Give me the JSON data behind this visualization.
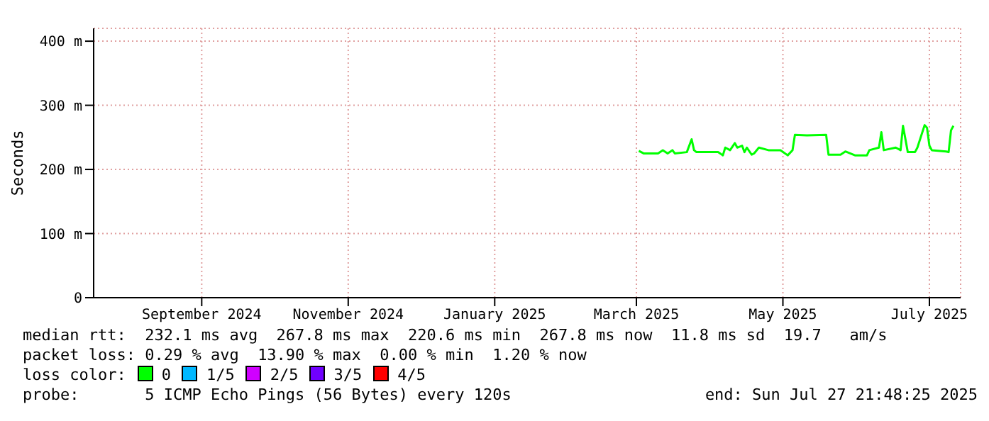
{
  "chart_data": {
    "type": "line",
    "ylabel": "Seconds",
    "legend_title": "loss color:",
    "legend": "bottom",
    "grid": true,
    "marker": "none",
    "line_style": "solid",
    "x": [
      "2025-03-17",
      "2025-03-19",
      "2025-03-25",
      "2025-03-27",
      "2025-03-29",
      "2025-03-31",
      "2025-04-01",
      "2025-04-06",
      "2025-04-08",
      "2025-04-09",
      "2025-04-10",
      "2025-04-19",
      "2025-04-21",
      "2025-04-22",
      "2025-04-24",
      "2025-04-26",
      "2025-04-27",
      "2025-04-29",
      "2025-04-30",
      "2025-05-01",
      "2025-05-03",
      "2025-05-04",
      "2025-05-06",
      "2025-05-10",
      "2025-05-15",
      "2025-05-18",
      "2025-05-20",
      "2025-05-21",
      "2025-05-26",
      "2025-06-03",
      "2025-06-04",
      "2025-06-09",
      "2025-06-11",
      "2025-06-15",
      "2025-06-20",
      "2025-06-21",
      "2025-06-25",
      "2025-06-26",
      "2025-06-27",
      "2025-07-02",
      "2025-07-04",
      "2025-07-05",
      "2025-07-07",
      "2025-07-10",
      "2025-07-11",
      "2025-07-14",
      "2025-07-15",
      "2025-07-16",
      "2025-07-17",
      "2025-07-23",
      "2025-07-24",
      "2025-07-25",
      "2025-07-26"
    ],
    "series": [
      {
        "name": "0",
        "color": "#00ff00",
        "values": [
          229,
          225,
          225,
          230,
          225,
          230,
          225,
          227,
          247,
          230,
          227,
          227,
          222,
          234,
          230,
          241,
          234,
          237,
          227,
          234,
          223,
          225,
          234,
          230,
          230,
          222,
          230,
          254,
          253,
          254,
          223,
          223,
          228,
          222,
          222,
          230,
          234,
          258,
          230,
          234,
          230,
          268,
          227,
          227,
          234,
          269,
          265,
          237,
          230,
          228,
          227,
          261,
          268
        ]
      },
      {
        "name": "1/5",
        "color": "#00b8ff",
        "values": [
          null,
          null,
          null,
          null,
          null,
          null,
          null,
          null,
          null,
          null,
          null,
          null,
          null,
          null,
          null,
          null,
          null,
          null,
          null,
          null,
          null,
          null,
          null,
          null,
          null,
          null,
          null,
          null,
          null,
          null,
          null,
          null,
          null,
          null,
          null,
          null,
          null,
          null,
          null,
          null,
          null,
          null,
          null,
          null,
          null,
          null,
          null,
          null,
          null,
          null,
          null,
          null,
          null
        ]
      },
      {
        "name": "2/5",
        "color": "#d000ff",
        "values": [
          null,
          null,
          null,
          null,
          null,
          null,
          null,
          null,
          null,
          null,
          null,
          null,
          null,
          null,
          null,
          null,
          null,
          null,
          null,
          null,
          null,
          null,
          null,
          null,
          null,
          null,
          null,
          null,
          null,
          null,
          null,
          null,
          null,
          null,
          null,
          null,
          null,
          null,
          null,
          null,
          null,
          null,
          null,
          null,
          null,
          null,
          null,
          null,
          null,
          null,
          null,
          null,
          null
        ]
      },
      {
        "name": "3/5",
        "color": "#7000ff",
        "values": [
          null,
          null,
          null,
          null,
          null,
          null,
          null,
          null,
          null,
          null,
          null,
          null,
          null,
          null,
          null,
          null,
          null,
          null,
          null,
          null,
          null,
          null,
          null,
          null,
          null,
          null,
          null,
          null,
          null,
          null,
          null,
          null,
          null,
          null,
          null,
          null,
          null,
          null,
          null,
          null,
          null,
          null,
          null,
          null,
          null,
          null,
          null,
          null,
          null,
          null,
          null,
          null,
          null
        ]
      },
      {
        "name": "4/5",
        "color": "#ff0000",
        "values": [
          null,
          null,
          null,
          null,
          null,
          null,
          null,
          null,
          null,
          null,
          null,
          null,
          null,
          null,
          null,
          null,
          null,
          null,
          null,
          null,
          null,
          null,
          null,
          null,
          null,
          null,
          null,
          null,
          null,
          null,
          null,
          null,
          null,
          null,
          null,
          null,
          null,
          null,
          null,
          null,
          null,
          null,
          null,
          null,
          null,
          null,
          null,
          null,
          null,
          null,
          null,
          null,
          null
        ]
      }
    ],
    "xlim": [
      "2024-08-02",
      "2025-07-29"
    ],
    "xticks": [
      {
        "value": "2024-09-16",
        "label": "September 2024"
      },
      {
        "value": "2024-11-16",
        "label": "November 2024"
      },
      {
        "value": "2025-01-16",
        "label": "January 2025"
      },
      {
        "value": "2025-03-16",
        "label": "March 2025"
      },
      {
        "value": "2025-05-16",
        "label": "May 2025"
      },
      {
        "value": "2025-07-16",
        "label": "July 2025"
      }
    ],
    "ylim": [
      0,
      420
    ],
    "yticks": [
      0,
      {
        "value": 100,
        "label": "100 m"
      },
      {
        "value": 200,
        "label": "200 m"
      },
      {
        "value": 300,
        "label": "300 m"
      },
      {
        "value": 400,
        "label": "400 m"
      }
    ],
    "annotations": [
      "median rtt:  232.1 ms avg  267.8 ms max  220.6 ms min  267.8 ms now  11.8 ms sd  19.7   am/s",
      "packet loss: 0.29 % avg  13.90 % max  0.00 % min  1.20 % now",
      "probe:       5 ICMP Echo Pings (56 Bytes) every 120s",
      "end: Sun Jul 27 21:48:25 2025"
    ]
  }
}
